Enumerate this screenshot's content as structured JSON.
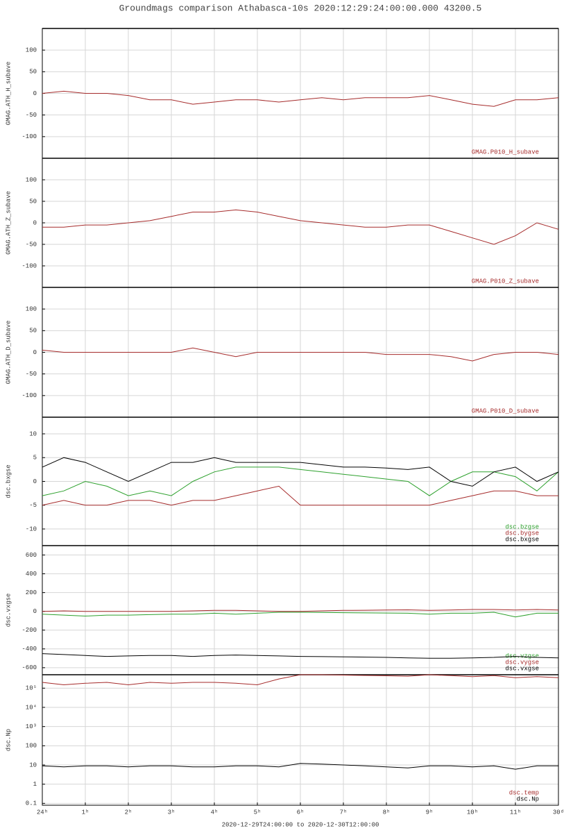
{
  "title": "Groundmags comparison Athabasca-10s 2020:12:29:24:00:00.000 43200.5",
  "x_axis": {
    "label": "2020-12-29T24:00:00 to 2020-12-30T12:00:00",
    "xlim": [
      0,
      12
    ],
    "xticks": [
      {
        "value": 0,
        "label": "24ʰ"
      },
      {
        "value": 1,
        "label": "1ʰ"
      },
      {
        "value": 2,
        "label": "2ʰ"
      },
      {
        "value": 3,
        "label": "3ʰ"
      },
      {
        "value": 4,
        "label": "4ʰ"
      },
      {
        "value": 5,
        "label": "5ʰ"
      },
      {
        "value": 6,
        "label": "6ʰ"
      },
      {
        "value": 7,
        "label": "7ʰ"
      },
      {
        "value": 8,
        "label": "8ʰ"
      },
      {
        "value": 9,
        "label": "9ʰ"
      },
      {
        "value": 10,
        "label": "10ʰ"
      },
      {
        "value": 11,
        "label": "11ʰ"
      },
      {
        "value": 12,
        "label": "30ᵈ"
      }
    ]
  },
  "chart_data": [
    {
      "type": "line",
      "ylabel": "GMAG.ATH_H_subave",
      "ylim": [
        -150,
        150
      ],
      "yticks": [
        100,
        50,
        0,
        -50,
        -100
      ],
      "grid": true,
      "x": [
        0,
        0.5,
        1,
        1.5,
        2,
        2.5,
        3,
        3.5,
        4,
        4.5,
        5,
        5.5,
        6,
        6.5,
        7,
        7.5,
        8,
        8.5,
        9,
        9.5,
        10,
        10.5,
        11,
        11.5,
        12
      ],
      "series": [
        {
          "name": "GMAG.P010_H_subave",
          "color": "#a52a2a",
          "values": [
            0,
            5,
            0,
            0,
            -5,
            -15,
            -15,
            -25,
            -20,
            -15,
            -15,
            -20,
            -15,
            -10,
            -15,
            -10,
            -10,
            -10,
            -5,
            -15,
            -25,
            -30,
            -15,
            -15,
            -10
          ]
        }
      ]
    },
    {
      "type": "line",
      "ylabel": "GMAG.ATH_Z_subave",
      "ylim": [
        -150,
        150
      ],
      "yticks": [
        100,
        50,
        0,
        -50,
        -100
      ],
      "grid": true,
      "x": [
        0,
        0.5,
        1,
        1.5,
        2,
        2.5,
        3,
        3.5,
        4,
        4.5,
        5,
        5.5,
        6,
        6.5,
        7,
        7.5,
        8,
        8.5,
        9,
        9.5,
        10,
        10.5,
        11,
        11.5,
        12
      ],
      "series": [
        {
          "name": "GMAG.P010_Z_subave",
          "color": "#a52a2a",
          "values": [
            -10,
            -10,
            -5,
            -5,
            0,
            5,
            15,
            25,
            25,
            30,
            25,
            15,
            5,
            0,
            -5,
            -10,
            -10,
            -5,
            -5,
            -20,
            -35,
            -50,
            -30,
            0,
            -15
          ]
        }
      ]
    },
    {
      "type": "line",
      "ylabel": "GMAG.ATH_D_subave",
      "ylim": [
        -150,
        150
      ],
      "yticks": [
        100,
        50,
        0,
        -50,
        -100
      ],
      "grid": true,
      "x": [
        0,
        0.5,
        1,
        1.5,
        2,
        2.5,
        3,
        3.5,
        4,
        4.5,
        5,
        5.5,
        6,
        6.5,
        7,
        7.5,
        8,
        8.5,
        9,
        9.5,
        10,
        10.5,
        11,
        11.5,
        12
      ],
      "series": [
        {
          "name": "GMAG.P010_D_subave",
          "color": "#a52a2a",
          "values": [
            5,
            0,
            0,
            0,
            0,
            0,
            0,
            10,
            0,
            -10,
            0,
            0,
            0,
            0,
            0,
            0,
            -5,
            -5,
            -5,
            -10,
            -20,
            -5,
            0,
            0,
            -5
          ]
        }
      ]
    },
    {
      "type": "line",
      "ylabel": "dsc.bxgse",
      "ylim": [
        -13.5,
        13.5
      ],
      "yticks": [
        10,
        5,
        0,
        -5,
        -10
      ],
      "grid": true,
      "x": [
        0,
        0.5,
        1,
        1.5,
        2,
        2.5,
        3,
        3.5,
        4,
        4.5,
        5,
        5.5,
        6,
        6.5,
        7,
        7.5,
        8,
        8.5,
        9,
        9.5,
        10,
        10.5,
        11,
        11.5,
        12
      ],
      "series": [
        {
          "name": "dsc.bzgse",
          "color": "#2ca02c",
          "values": [
            -3,
            -2,
            0,
            -1,
            -3,
            -2,
            -3,
            0,
            2,
            3,
            3,
            3,
            2.5,
            2,
            1.5,
            1,
            0.5,
            0,
            -3,
            0,
            2,
            2,
            1,
            -2,
            2
          ]
        },
        {
          "name": "dsc.bygse",
          "color": "#a52a2a",
          "values": [
            -5,
            -4,
            -5,
            -5,
            -4,
            -4,
            -5,
            -4,
            -4,
            -3,
            -2,
            -1,
            -5,
            -5,
            -5,
            -5,
            -5,
            -5,
            -5,
            -4,
            -3,
            -2,
            -2,
            -3,
            -3
          ]
        },
        {
          "name": "dsc.bxgse",
          "color": "#000000",
          "values": [
            3,
            5,
            4,
            2,
            0,
            2,
            4,
            4,
            5,
            4,
            4,
            4,
            4,
            3.5,
            3,
            3,
            2.8,
            2.5,
            3,
            0,
            -1,
            2,
            3,
            0,
            2
          ]
        }
      ]
    },
    {
      "type": "line",
      "ylabel": "dsc.vxgse",
      "ylim": [
        -675,
        700
      ],
      "yticks": [
        600,
        400,
        200,
        0,
        -200,
        -400,
        -600
      ],
      "grid": true,
      "x": [
        0,
        0.5,
        1,
        1.5,
        2,
        2.5,
        3,
        3.5,
        4,
        4.5,
        5,
        5.5,
        6,
        6.5,
        7,
        7.5,
        8,
        8.5,
        9,
        9.5,
        10,
        10.5,
        11,
        11.5,
        12
      ],
      "series": [
        {
          "name": "dsc.vzgse",
          "color": "#2ca02c",
          "values": [
            -30,
            -40,
            -50,
            -40,
            -40,
            -35,
            -30,
            -30,
            -20,
            -30,
            -20,
            -10,
            -10,
            -12,
            -14,
            -16,
            -18,
            -20,
            -30,
            -20,
            -20,
            -10,
            -60,
            -20,
            -20
          ]
        },
        {
          "name": "dsc.vygse",
          "color": "#a52a2a",
          "values": [
            0,
            5,
            0,
            0,
            0,
            0,
            0,
            5,
            10,
            10,
            5,
            0,
            0,
            5,
            10,
            12,
            14,
            16,
            10,
            15,
            20,
            20,
            15,
            20,
            15
          ]
        },
        {
          "name": "dsc.vxgse",
          "color": "#000000",
          "values": [
            -450,
            -460,
            -470,
            -480,
            -475,
            -470,
            -470,
            -480,
            -470,
            -465,
            -470,
            -475,
            -480,
            -482,
            -485,
            -487,
            -490,
            -495,
            -500,
            -500,
            -495,
            -490,
            -480,
            -490,
            -495
          ]
        }
      ]
    },
    {
      "type": "line",
      "ylabel": "dsc.Np",
      "log": true,
      "ylim": [
        0.08,
        500000
      ],
      "yticks": [
        {
          "value": 100000,
          "label": "10⁵"
        },
        {
          "value": 10000,
          "label": "10⁴"
        },
        {
          "value": 1000,
          "label": "10³"
        },
        100,
        10,
        1,
        0.1
      ],
      "grid": true,
      "x": [
        0,
        0.5,
        1,
        1.5,
        2,
        2.5,
        3,
        3.5,
        4,
        4.5,
        5,
        5.5,
        6,
        6.5,
        7,
        7.5,
        8,
        8.5,
        9,
        9.5,
        10,
        10.5,
        11,
        11.5,
        12
      ],
      "series": [
        {
          "name": "dsc.temp",
          "color": "#a52a2a",
          "values": [
            200000,
            150000,
            180000,
            200000,
            150000,
            200000,
            180000,
            200000,
            200000,
            180000,
            150000,
            300000,
            500000,
            500000,
            480000,
            460000,
            440000,
            420000,
            500000,
            450000,
            400000,
            450000,
            350000,
            400000,
            350000
          ]
        },
        {
          "name": "dsc.Np",
          "color": "#000000",
          "values": [
            9,
            8,
            9,
            9,
            8,
            9,
            9,
            8,
            8,
            9,
            9,
            8,
            12,
            11,
            10,
            9,
            8,
            7,
            9,
            9,
            8,
            9,
            6,
            9,
            9
          ]
        }
      ]
    }
  ]
}
